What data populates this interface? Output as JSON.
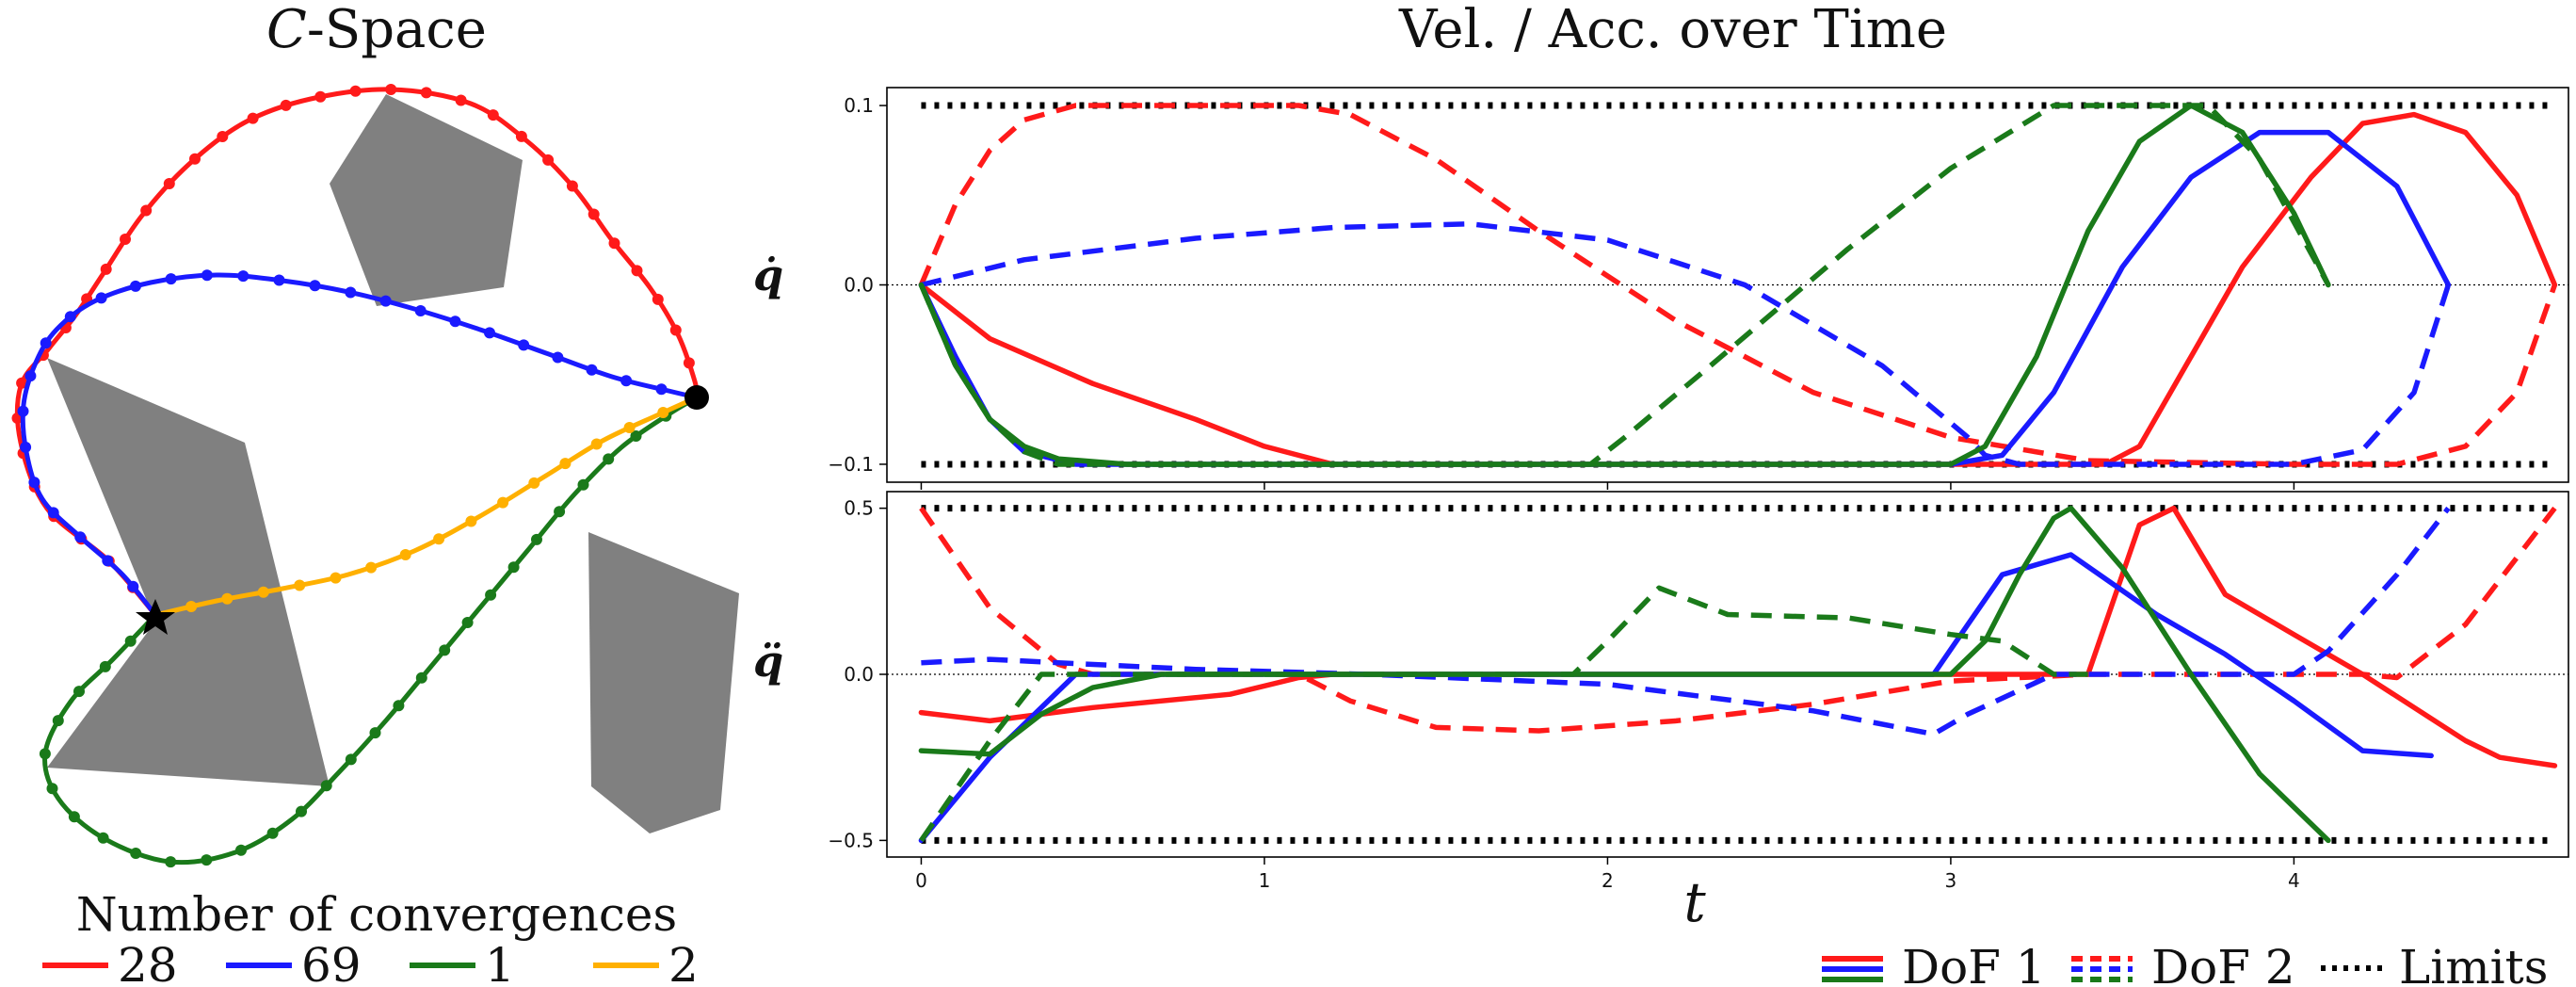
{
  "chart_data": [
    {
      "type": "diagram",
      "title": "C-Space",
      "title_script": "C",
      "title_rest": "-Space",
      "legend_title": "Number of convergences",
      "legend": [
        {
          "label": "28",
          "color": "#ff1a1a"
        },
        {
          "label": "69",
          "color": "#1a1aff"
        },
        {
          "label": "1",
          "color": "#1a7a1a"
        },
        {
          "label": "2",
          "color": "#ffb000"
        }
      ],
      "start_marker": "star",
      "goal_marker": "dot"
    },
    {
      "type": "line",
      "title": "Vel. / Acc. over Time",
      "xlabel": "t",
      "xlim": [
        -0.1,
        4.8
      ],
      "x_ticks": [
        "0",
        "1",
        "2",
        "3",
        "4"
      ],
      "x_tick_values": [
        0,
        1,
        2,
        3,
        4
      ],
      "colors": {
        "dof1": "#ff1a1a",
        "dof2": "#1a1aff",
        "dof3": "#1a7a1a"
      },
      "panels": [
        {
          "name": "velocity",
          "ylabel": "q̇",
          "ylim": [
            -0.11,
            0.11
          ],
          "y_ticks": [
            "0.1",
            "0.0",
            "−0.1"
          ],
          "y_tick_values": [
            0.1,
            0.0,
            -0.1
          ],
          "limits": [
            -0.1,
            0.1
          ],
          "series": [
            {
              "name": "DoF 1",
              "color": "red",
              "dash": "solid",
              "x": [
                0,
                0.2,
                0.5,
                0.8,
                1.0,
                1.2,
                2.0,
                3.0,
                3.45,
                3.55,
                3.7,
                3.85,
                4.05,
                4.2,
                4.35,
                4.5,
                4.65,
                4.76
              ],
              "y": [
                0,
                -0.03,
                -0.055,
                -0.075,
                -0.09,
                -0.1,
                -0.1,
                -0.1,
                -0.1,
                -0.09,
                -0.04,
                0.01,
                0.06,
                0.09,
                0.095,
                0.085,
                0.05,
                0.0
              ]
            },
            {
              "name": "DoF 2",
              "color": "red",
              "dash": "dashed",
              "x": [
                0,
                0.1,
                0.2,
                0.3,
                0.45,
                1.1,
                1.25,
                1.5,
                1.8,
                2.2,
                2.6,
                3.0,
                3.4,
                4.0,
                4.3,
                4.5,
                4.65,
                4.76
              ],
              "y": [
                0,
                0.045,
                0.075,
                0.092,
                0.1,
                0.1,
                0.095,
                0.07,
                0.03,
                -0.02,
                -0.06,
                -0.085,
                -0.098,
                -0.1,
                -0.1,
                -0.09,
                -0.06,
                0.0
              ]
            },
            {
              "name": "DoF 1",
              "color": "blue",
              "dash": "solid",
              "x": [
                0,
                0.1,
                0.2,
                0.3,
                0.45,
                0.6,
                1.0,
                2.0,
                3.0,
                3.15,
                3.3,
                3.5,
                3.7,
                3.9,
                4.1,
                4.3,
                4.45
              ],
              "y": [
                0,
                -0.04,
                -0.075,
                -0.093,
                -0.1,
                -0.1,
                -0.1,
                -0.1,
                -0.1,
                -0.095,
                -0.06,
                0.01,
                0.06,
                0.085,
                0.085,
                0.055,
                0.0
              ]
            },
            {
              "name": "DoF 2",
              "color": "blue",
              "dash": "dashed",
              "x": [
                0,
                0.3,
                0.8,
                1.2,
                1.6,
                2.0,
                2.4,
                2.8,
                3.05,
                3.1,
                3.2,
                3.6,
                4.0,
                4.2,
                4.35,
                4.45
              ],
              "y": [
                0,
                0.014,
                0.026,
                0.032,
                0.034,
                0.025,
                0.0,
                -0.045,
                -0.085,
                -0.095,
                -0.1,
                -0.1,
                -0.1,
                -0.092,
                -0.06,
                0.0
              ]
            },
            {
              "name": "DoF 1",
              "color": "green",
              "dash": "solid",
              "x": [
                0,
                0.1,
                0.2,
                0.3,
                0.4,
                0.6,
                1.0,
                2.0,
                3.0,
                3.1,
                3.25,
                3.4,
                3.55,
                3.7,
                3.85,
                4.0,
                4.1
              ],
              "y": [
                0,
                -0.045,
                -0.075,
                -0.09,
                -0.097,
                -0.1,
                -0.1,
                -0.1,
                -0.1,
                -0.09,
                -0.04,
                0.03,
                0.08,
                0.1,
                0.085,
                0.04,
                0.0
              ]
            },
            {
              "name": "DoF 2",
              "color": "green",
              "dash": "dashed",
              "x": [
                0,
                0.1,
                0.2,
                0.3,
                0.4,
                1.0,
                1.95,
                2.05,
                2.3,
                2.7,
                3.0,
                3.3,
                3.75,
                3.9,
                4.1
              ],
              "y": [
                0,
                -0.045,
                -0.075,
                -0.093,
                -0.1,
                -0.1,
                -0.1,
                -0.085,
                -0.045,
                0.02,
                0.065,
                0.1,
                0.1,
                0.07,
                0.0
              ]
            }
          ]
        },
        {
          "name": "acceleration",
          "ylabel": "q̈",
          "ylim": [
            -0.55,
            0.55
          ],
          "y_ticks": [
            "0.5",
            "0.0",
            "−0.5"
          ],
          "y_tick_values": [
            0.5,
            0.0,
            -0.5
          ],
          "limits": [
            -0.5,
            0.5
          ],
          "series": [
            {
              "name": "DoF 1",
              "color": "red",
              "dash": "solid",
              "x": [
                0,
                0.2,
                0.5,
                0.9,
                1.1,
                1.2,
                3.0,
                3.4,
                3.55,
                3.65,
                3.8,
                4.0,
                4.2,
                4.5,
                4.6,
                4.76
              ],
              "y": [
                -0.115,
                -0.14,
                -0.1,
                -0.06,
                -0.01,
                0.0,
                0.0,
                0.0,
                0.45,
                0.5,
                0.24,
                0.12,
                0.0,
                -0.2,
                -0.25,
                -0.275
              ]
            },
            {
              "name": "DoF 2",
              "color": "red",
              "dash": "dashed",
              "x": [
                0,
                0.2,
                0.4,
                0.5,
                1.1,
                1.25,
                1.5,
                1.8,
                2.2,
                2.6,
                3.0,
                3.4,
                3.8,
                4.2,
                4.3,
                4.5,
                4.76
              ],
              "y": [
                0.5,
                0.2,
                0.03,
                0.0,
                0.0,
                -0.08,
                -0.16,
                -0.17,
                -0.14,
                -0.09,
                -0.02,
                0.0,
                0.0,
                0.0,
                -0.01,
                0.15,
                0.5
              ]
            },
            {
              "name": "DoF 1",
              "color": "blue",
              "dash": "solid",
              "x": [
                0,
                0.2,
                0.45,
                0.6,
                1.0,
                2.0,
                2.95,
                3.05,
                3.15,
                3.35,
                3.6,
                3.8,
                4.0,
                4.2,
                4.4
              ],
              "y": [
                -0.5,
                -0.25,
                0.0,
                0.0,
                0.0,
                0.0,
                0.0,
                0.15,
                0.3,
                0.36,
                0.18,
                0.06,
                -0.08,
                -0.23,
                -0.245
              ]
            },
            {
              "name": "DoF 2",
              "color": "blue",
              "dash": "dashed",
              "x": [
                0,
                0.2,
                0.4,
                0.8,
                1.3,
                2.0,
                2.6,
                2.95,
                3.05,
                3.3,
                3.6,
                4.0,
                4.1,
                4.3,
                4.45
              ],
              "y": [
                0.035,
                0.045,
                0.035,
                0.015,
                0.0,
                -0.03,
                -0.11,
                -0.18,
                -0.12,
                0.0,
                0.0,
                0.0,
                0.07,
                0.3,
                0.5
              ]
            },
            {
              "name": "DoF 1",
              "color": "green",
              "dash": "solid",
              "x": [
                0,
                0.2,
                0.35,
                0.5,
                0.7,
                1.0,
                2.0,
                3.0,
                3.1,
                3.2,
                3.3,
                3.35,
                3.5,
                3.7,
                3.9,
                4.1
              ],
              "y": [
                -0.23,
                -0.24,
                -0.12,
                -0.04,
                0.0,
                0.0,
                0.0,
                0.0,
                0.1,
                0.3,
                0.47,
                0.5,
                0.32,
                0.0,
                -0.3,
                -0.5
              ]
            },
            {
              "name": "DoF 2",
              "color": "green",
              "dash": "dashed",
              "x": [
                0,
                0.2,
                0.35,
                0.5,
                1.0,
                1.9,
                2.0,
                2.15,
                2.35,
                2.7,
                3.0,
                3.15,
                3.3,
                3.4
              ],
              "y": [
                -0.5,
                -0.2,
                0.0,
                0.0,
                0.0,
                0.0,
                0.1,
                0.26,
                0.18,
                0.17,
                0.12,
                0.1,
                0.0,
                0.0
              ]
            }
          ]
        }
      ],
      "legend": [
        {
          "label": "DoF 1",
          "style": "solid"
        },
        {
          "label": "DoF 2",
          "style": "dashed"
        },
        {
          "label": "Limits",
          "style": "dotted"
        }
      ]
    }
  ]
}
